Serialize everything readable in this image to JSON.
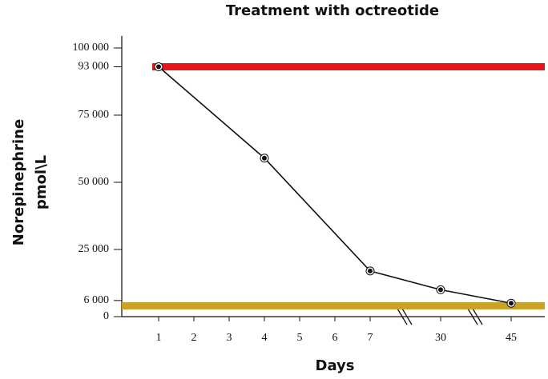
{
  "chart_data": {
    "type": "line",
    "title": "Treatment with octreotide",
    "x_label": "Days",
    "y_label": [
      "Norepinephrine",
      "pmol\\L"
    ],
    "categories": [
      "1",
      "2",
      "3",
      "4",
      "5",
      "6",
      "7",
      null,
      "30",
      null,
      "45"
    ],
    "x": [
      "1",
      "4",
      "7",
      "30",
      "45"
    ],
    "series": [
      {
        "color": "#111111",
        "values": [
          93000,
          59000,
          17000,
          10000,
          5000
        ]
      }
    ],
    "reference_lines": [
      {
        "value": 93000,
        "color": "#e8141b"
      },
      {
        "value": 4000,
        "color": "#c9a227"
      }
    ],
    "ylim": [
      0,
      100000
    ],
    "yticks": [
      0,
      {
        "value": 6000,
        "label": "6 000"
      },
      {
        "value": 25000,
        "label": "25 000"
      },
      {
        "value": 50000,
        "label": "50 000"
      },
      {
        "value": 75000,
        "label": "75 000"
      },
      {
        "value": 93000,
        "label": "93 000"
      },
      {
        "value": 100000,
        "label": "100 000"
      }
    ]
  }
}
